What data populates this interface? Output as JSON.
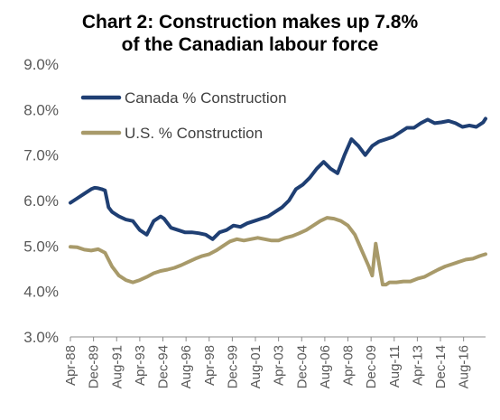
{
  "chart_data": {
    "type": "line",
    "title_line1": "Chart 2: Construction makes up 7.8%",
    "title_line2": "of the Canadian labour force",
    "xlabel": "",
    "ylabel": "",
    "ylim": [
      3.0,
      9.0
    ],
    "y_ticks": [
      "3.0%",
      "4.0%",
      "5.0%",
      "6.0%",
      "7.0%",
      "8.0%",
      "9.0%"
    ],
    "y_tick_values": [
      3.0,
      4.0,
      5.0,
      6.0,
      7.0,
      8.0,
      9.0
    ],
    "x_ticks": [
      "Apr-88",
      "Dec-89",
      "Aug-91",
      "Apr-93",
      "Dec-94",
      "Aug-96",
      "Apr-98",
      "Dec-99",
      "Aug-01",
      "Apr-03",
      "Dec-04",
      "Aug-06",
      "Apr-08",
      "Dec-09",
      "Aug-11",
      "Apr-13",
      "Dec-14",
      "Aug-16"
    ],
    "x_range": [
      "1988-04",
      "2018-03"
    ],
    "grid": false,
    "legend_position": "top-left",
    "colors": {
      "canada": "#1f3f73",
      "us": "#a89a6a"
    },
    "series": [
      {
        "name": "Canada % Construction",
        "x": [
          "1988-04",
          "1988-10",
          "1989-04",
          "1989-10",
          "1990-01",
          "1990-04",
          "1990-07",
          "1990-10",
          "1991-01",
          "1991-04",
          "1991-10",
          "1992-04",
          "1992-10",
          "1993-04",
          "1993-10",
          "1994-04",
          "1994-10",
          "1995-01",
          "1995-07",
          "1996-01",
          "1996-07",
          "1997-01",
          "1997-07",
          "1998-01",
          "1998-07",
          "1999-01",
          "1999-07",
          "2000-01",
          "2000-07",
          "2001-01",
          "2001-07",
          "2002-01",
          "2002-07",
          "2003-01",
          "2003-07",
          "2004-01",
          "2004-07",
          "2005-01",
          "2005-07",
          "2006-01",
          "2006-07",
          "2007-01",
          "2007-07",
          "2008-01",
          "2008-07",
          "2009-01",
          "2009-07",
          "2010-01",
          "2010-07",
          "2011-01",
          "2011-07",
          "2012-01",
          "2012-07",
          "2013-01",
          "2013-07",
          "2014-01",
          "2014-07",
          "2015-01",
          "2015-07",
          "2016-01",
          "2016-07",
          "2017-01",
          "2017-07",
          "2018-01",
          "2018-03"
        ],
        "values": [
          5.95,
          6.05,
          6.15,
          6.25,
          6.28,
          6.27,
          6.25,
          6.22,
          5.85,
          5.75,
          5.65,
          5.58,
          5.55,
          5.35,
          5.25,
          5.55,
          5.65,
          5.6,
          5.4,
          5.35,
          5.3,
          5.3,
          5.28,
          5.25,
          5.15,
          5.3,
          5.35,
          5.45,
          5.42,
          5.5,
          5.55,
          5.6,
          5.65,
          5.75,
          5.85,
          6.0,
          6.25,
          6.35,
          6.5,
          6.7,
          6.85,
          6.7,
          6.6,
          7.0,
          7.35,
          7.2,
          7.0,
          7.2,
          7.3,
          7.35,
          7.4,
          7.5,
          7.6,
          7.6,
          7.7,
          7.78,
          7.7,
          7.72,
          7.75,
          7.7,
          7.62,
          7.65,
          7.62,
          7.72,
          7.8
        ]
      },
      {
        "name": "U.S. % Construction",
        "x": [
          "1988-04",
          "1988-10",
          "1989-04",
          "1989-10",
          "1990-04",
          "1990-10",
          "1991-04",
          "1991-10",
          "1992-04",
          "1992-10",
          "1993-04",
          "1993-10",
          "1994-04",
          "1994-10",
          "1995-04",
          "1995-10",
          "1996-04",
          "1996-10",
          "1997-04",
          "1997-10",
          "1998-04",
          "1998-10",
          "1999-04",
          "1999-10",
          "2000-04",
          "2000-10",
          "2001-04",
          "2001-10",
          "2002-04",
          "2002-10",
          "2003-04",
          "2003-10",
          "2004-04",
          "2004-10",
          "2005-04",
          "2005-10",
          "2006-04",
          "2006-10",
          "2007-04",
          "2007-10",
          "2008-04",
          "2008-10",
          "2009-04",
          "2009-10",
          "2010-01",
          "2010-04",
          "2010-07",
          "2010-10",
          "2011-01",
          "2011-04",
          "2011-10",
          "2012-04",
          "2012-10",
          "2013-04",
          "2013-10",
          "2014-04",
          "2014-10",
          "2015-04",
          "2015-10",
          "2016-04",
          "2016-10",
          "2017-04",
          "2017-10",
          "2018-03"
        ],
        "values": [
          4.98,
          4.97,
          4.92,
          4.9,
          4.93,
          4.85,
          4.55,
          4.35,
          4.25,
          4.2,
          4.25,
          4.32,
          4.4,
          4.45,
          4.48,
          4.52,
          4.58,
          4.65,
          4.72,
          4.78,
          4.82,
          4.9,
          5.0,
          5.1,
          5.15,
          5.12,
          5.15,
          5.18,
          5.15,
          5.12,
          5.12,
          5.18,
          5.22,
          5.28,
          5.35,
          5.45,
          5.55,
          5.62,
          5.6,
          5.55,
          5.45,
          5.25,
          4.9,
          4.55,
          4.35,
          5.05,
          4.6,
          4.15,
          4.15,
          4.2,
          4.2,
          4.22,
          4.22,
          4.28,
          4.32,
          4.4,
          4.48,
          4.55,
          4.6,
          4.65,
          4.7,
          4.72,
          4.78,
          4.82
        ]
      }
    ]
  }
}
